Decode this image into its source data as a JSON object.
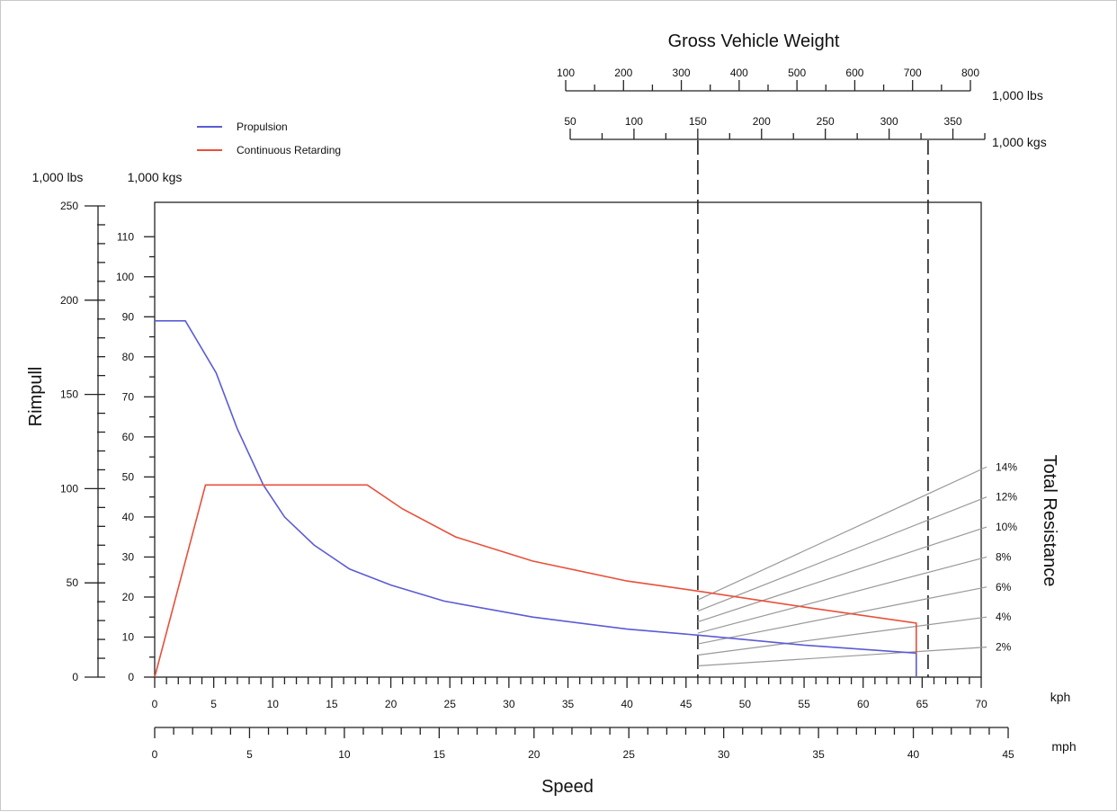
{
  "chart_data": {
    "type": "line",
    "title": "",
    "xlabel": "Speed",
    "ylabel": "Rimpull",
    "right_label": "Total Resistance",
    "top_title": "Gross Vehicle Weight",
    "x_units": {
      "kph": "kph",
      "mph": "mph"
    },
    "y_units": {
      "lbs": "1,000 lbs",
      "kgs": "1,000 kgs"
    },
    "top_units": {
      "lbs": "1,000 lbs",
      "kgs": "1,000 kgs"
    },
    "xlim_kph": [
      0,
      70
    ],
    "xlim_mph": [
      0,
      45
    ],
    "ylim_kgs": [
      0,
      115
    ],
    "ylim_lbs": [
      0,
      250
    ],
    "x_ticks_kph": [
      0,
      5,
      10,
      15,
      20,
      25,
      30,
      35,
      40,
      45,
      50,
      55,
      60,
      65,
      70
    ],
    "x_ticks_mph": [
      0,
      5,
      10,
      15,
      20,
      25,
      30,
      35,
      40,
      45
    ],
    "y_ticks_kgs": [
      0,
      10,
      20,
      30,
      40,
      50,
      60,
      70,
      80,
      90,
      100,
      110
    ],
    "y_ticks_lbs": [
      0,
      50,
      100,
      150,
      200,
      250
    ],
    "gvw_lbs_ticks": [
      100,
      200,
      300,
      400,
      500,
      600,
      700,
      800
    ],
    "gvw_kgs_ticks": [
      50,
      100,
      150,
      200,
      250,
      300,
      350
    ],
    "grade_lines": [
      {
        "label": "2%",
        "start": 2.8,
        "end": 7.5
      },
      {
        "label": "4%",
        "start": 5.5,
        "end": 15
      },
      {
        "label": "6%",
        "start": 8.3,
        "end": 22.5
      },
      {
        "label": "8%",
        "start": 11,
        "end": 30
      },
      {
        "label": "10%",
        "start": 13.8,
        "end": 37.5
      },
      {
        "label": "12%",
        "start": 16.5,
        "end": 45
      },
      {
        "label": "14%",
        "start": 19.3,
        "end": 52.5
      }
    ],
    "gvw_markers_kph": [
      46,
      65.5
    ],
    "legend": {
      "position": "top-left"
    },
    "series": [
      {
        "name": "Propulsion",
        "color": "#5b5bd6",
        "points": [
          [
            0,
            89
          ],
          [
            2.6,
            89
          ],
          [
            5.2,
            76
          ],
          [
            7,
            62
          ],
          [
            9.2,
            48
          ],
          [
            11,
            40
          ],
          [
            13.5,
            33
          ],
          [
            16.5,
            27
          ],
          [
            20,
            23
          ],
          [
            24.5,
            19
          ],
          [
            32,
            15
          ],
          [
            40,
            12
          ],
          [
            46,
            10.5
          ],
          [
            55,
            8
          ],
          [
            64.5,
            6
          ],
          [
            64.5,
            0
          ]
        ]
      },
      {
        "name": "Continuous Retarding",
        "color": "#e8503a",
        "points": [
          [
            0,
            0
          ],
          [
            4.3,
            48
          ],
          [
            18,
            48
          ],
          [
            21,
            42
          ],
          [
            25.5,
            35
          ],
          [
            32,
            29
          ],
          [
            40,
            24
          ],
          [
            46,
            21.5
          ],
          [
            55,
            17.5
          ],
          [
            64.5,
            13.5
          ],
          [
            64.5,
            6
          ]
        ]
      }
    ]
  }
}
